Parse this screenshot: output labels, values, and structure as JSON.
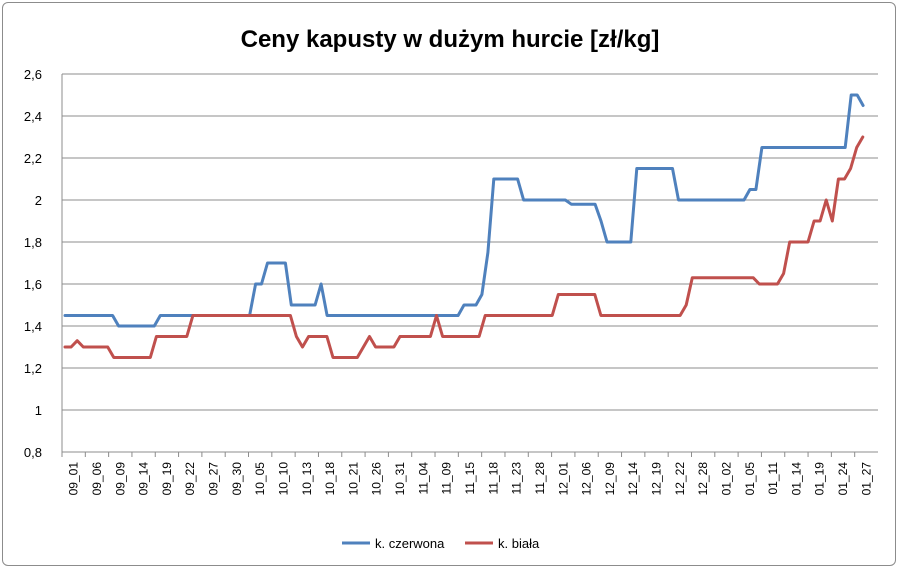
{
  "chart_data": {
    "type": "line",
    "title": "Ceny kapusty w dużym hurcie [zł/kg]",
    "xlabel": "",
    "ylabel": "",
    "ylim": [
      0.8,
      2.6
    ],
    "yticks": [
      0.8,
      1,
      1.2,
      1.4,
      1.6,
      1.8,
      2,
      2.2,
      2.4,
      2.6
    ],
    "ytick_labels": [
      "0,8",
      "1",
      "1,2",
      "1,4",
      "1,6",
      "1,8",
      "2",
      "2,2",
      "2,4",
      "2,6"
    ],
    "x_tick_labels": [
      "09_01",
      "09_06",
      "09_09",
      "09_14",
      "09_19",
      "09_22",
      "09_27",
      "09_30",
      "10_05",
      "10_10",
      "10_13",
      "10_18",
      "10_21",
      "10_26",
      "10_31",
      "11_04",
      "11_09",
      "11_15",
      "11_18",
      "11_23",
      "11_28",
      "12_01",
      "12_06",
      "12_09",
      "12_14",
      "12_19",
      "12_22",
      "12_28",
      "01_02",
      "01_05",
      "01_11",
      "01_14",
      "01_19",
      "01_24",
      "01_27"
    ],
    "grid": "horizontal",
    "legend": "bottom",
    "series": [
      {
        "name": "k. czerwona",
        "color": "#4f81bd",
        "values": [
          1.45,
          1.45,
          1.45,
          1.45,
          1.45,
          1.45,
          1.45,
          1.45,
          1.45,
          1.4,
          1.4,
          1.4,
          1.4,
          1.4,
          1.4,
          1.4,
          1.45,
          1.45,
          1.45,
          1.45,
          1.45,
          1.45,
          1.45,
          1.45,
          1.45,
          1.45,
          1.45,
          1.45,
          1.45,
          1.45,
          1.45,
          1.45,
          1.6,
          1.6,
          1.7,
          1.7,
          1.7,
          1.7,
          1.5,
          1.5,
          1.5,
          1.5,
          1.5,
          1.6,
          1.45,
          1.45,
          1.45,
          1.45,
          1.45,
          1.45,
          1.45,
          1.45,
          1.45,
          1.45,
          1.45,
          1.45,
          1.45,
          1.45,
          1.45,
          1.45,
          1.45,
          1.45,
          1.45,
          1.45,
          1.45,
          1.45,
          1.45,
          1.5,
          1.5,
          1.5,
          1.55,
          1.75,
          2.1,
          2.1,
          2.1,
          2.1,
          2.1,
          2.0,
          2.0,
          2.0,
          2.0,
          2.0,
          2.0,
          2.0,
          2.0,
          1.98,
          1.98,
          1.98,
          1.98,
          1.98,
          1.9,
          1.8,
          1.8,
          1.8,
          1.8,
          1.8,
          2.15,
          2.15,
          2.15,
          2.15,
          2.15,
          2.15,
          2.15,
          2.0,
          2.0,
          2.0,
          2.0,
          2.0,
          2.0,
          2.0,
          2.0,
          2.0,
          2.0,
          2.0,
          2.0,
          2.05,
          2.05,
          2.25,
          2.25,
          2.25,
          2.25,
          2.25,
          2.25,
          2.25,
          2.25,
          2.25,
          2.25,
          2.25,
          2.25,
          2.25,
          2.25,
          2.25,
          2.5,
          2.5,
          2.45
        ]
      },
      {
        "name": "k. biała",
        "color": "#c0504d",
        "values": [
          1.3,
          1.3,
          1.33,
          1.3,
          1.3,
          1.3,
          1.3,
          1.3,
          1.25,
          1.25,
          1.25,
          1.25,
          1.25,
          1.25,
          1.25,
          1.35,
          1.35,
          1.35,
          1.35,
          1.35,
          1.35,
          1.45,
          1.45,
          1.45,
          1.45,
          1.45,
          1.45,
          1.45,
          1.45,
          1.45,
          1.45,
          1.45,
          1.45,
          1.45,
          1.45,
          1.45,
          1.45,
          1.45,
          1.35,
          1.3,
          1.35,
          1.35,
          1.35,
          1.35,
          1.25,
          1.25,
          1.25,
          1.25,
          1.25,
          1.3,
          1.35,
          1.3,
          1.3,
          1.3,
          1.3,
          1.35,
          1.35,
          1.35,
          1.35,
          1.35,
          1.35,
          1.45,
          1.35,
          1.35,
          1.35,
          1.35,
          1.35,
          1.35,
          1.35,
          1.45,
          1.45,
          1.45,
          1.45,
          1.45,
          1.45,
          1.45,
          1.45,
          1.45,
          1.45,
          1.45,
          1.45,
          1.55,
          1.55,
          1.55,
          1.55,
          1.55,
          1.55,
          1.55,
          1.45,
          1.45,
          1.45,
          1.45,
          1.45,
          1.45,
          1.45,
          1.45,
          1.45,
          1.45,
          1.45,
          1.45,
          1.45,
          1.45,
          1.5,
          1.63,
          1.63,
          1.63,
          1.63,
          1.63,
          1.63,
          1.63,
          1.63,
          1.63,
          1.63,
          1.63,
          1.6,
          1.6,
          1.6,
          1.6,
          1.65,
          1.8,
          1.8,
          1.8,
          1.8,
          1.9,
          1.9,
          2.0,
          1.9,
          2.1,
          2.1,
          2.15,
          2.25,
          2.3
        ]
      }
    ]
  }
}
